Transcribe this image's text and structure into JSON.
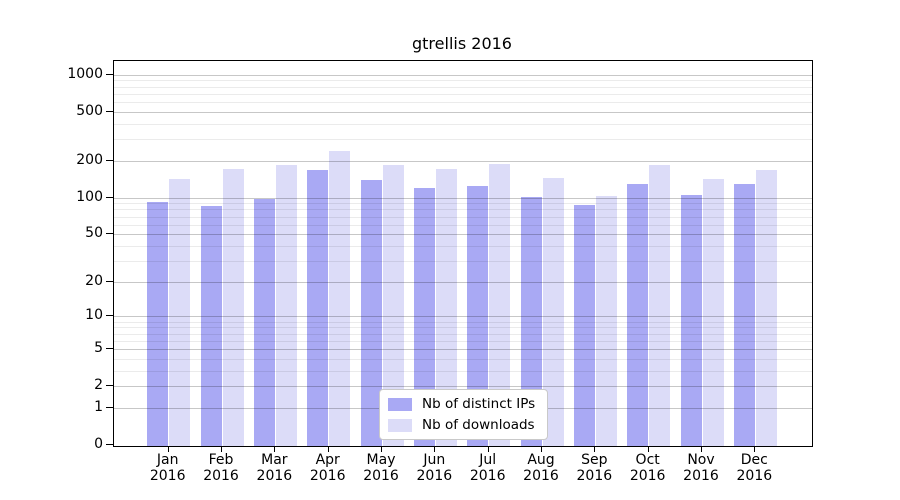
{
  "chart_data": {
    "type": "bar",
    "title": "gtrellis 2016",
    "categories": [
      "Jan 2016",
      "Feb 2016",
      "Mar 2016",
      "Apr 2016",
      "May 2016",
      "Jun 2016",
      "Jul 2016",
      "Aug 2016",
      "Sep 2016",
      "Oct 2016",
      "Nov 2016",
      "Dec 2016"
    ],
    "series": [
      {
        "name": "Nb of distinct IPs",
        "color": "#a9a9f4",
        "values": [
          93,
          85,
          97,
          169,
          139,
          121,
          124,
          102,
          87,
          129,
          105,
          130
        ]
      },
      {
        "name": "Nb of downloads",
        "color": "#dcdcf8",
        "values": [
          143,
          170,
          185,
          239,
          185,
          173,
          189,
          144,
          104,
          185,
          142,
          168
        ]
      }
    ],
    "yscale": "log10(1+v)",
    "yticks": [
      0,
      1,
      2,
      5,
      10,
      20,
      50,
      100,
      200,
      500,
      1000
    ],
    "minor_gridlines": [
      3,
      4,
      6,
      7,
      8,
      9,
      30,
      40,
      60,
      70,
      80,
      90,
      300,
      400,
      600,
      700,
      800,
      900
    ],
    "ylim_top_value": 1300,
    "legend_position": "bottom-center",
    "grid_over_bars": true,
    "axis_color": "#000000",
    "major_grid_color": "#c8c8c8",
    "minor_grid_color": "#e9e9e9"
  }
}
